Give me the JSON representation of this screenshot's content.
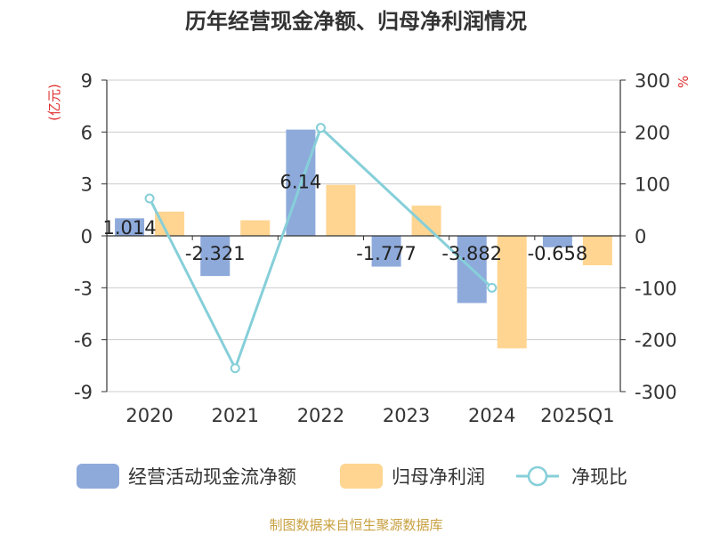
{
  "chart_data": {
    "type": "bar",
    "title": "历年经营现金净额、归母净利润情况",
    "y_left_unit": "(亿元)",
    "y_right_unit": "%",
    "source": "制图数据来自恒生聚源数据库",
    "categories": [
      "2020",
      "2021",
      "2022",
      "2023",
      "2024",
      "2025Q1"
    ],
    "left_axis": {
      "min": -9,
      "max": 9,
      "ticks": [
        "9",
        "6",
        "3",
        "0",
        "-3",
        "-6",
        "-9"
      ]
    },
    "right_axis": {
      "min": -300,
      "max": 300,
      "ticks": [
        "300",
        "200",
        "100",
        "0",
        "-100",
        "-200",
        "-300"
      ]
    },
    "grid": true,
    "legend_position": "bottom",
    "series": [
      {
        "name": "经营活动现金流净额",
        "type": "bar",
        "axis": "left",
        "color": "#8eaadb",
        "values": [
          1.014,
          -2.321,
          6.14,
          -1.777,
          -3.882,
          -0.658
        ],
        "labels": [
          "1.014",
          "-2.321",
          "6.14",
          "-1.777",
          "-3.882",
          "-0.658"
        ]
      },
      {
        "name": "归母净利润",
        "type": "bar",
        "axis": "left",
        "color": "#ffd591",
        "values": [
          1.4,
          0.9,
          2.95,
          1.75,
          -6.5,
          -1.7
        ]
      },
      {
        "name": "净现比",
        "type": "line",
        "axis": "right",
        "color": "#86cfd9",
        "values": [
          72,
          -255,
          208,
          null,
          -100,
          null
        ]
      }
    ]
  }
}
